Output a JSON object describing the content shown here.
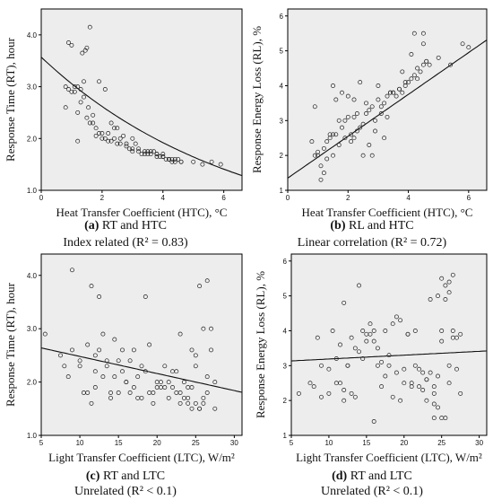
{
  "chart_data": [
    {
      "type": "scatter",
      "panel_label": "(a)",
      "caption_title": "RT and HTC",
      "caption_sub": "Index related (R² = 0.83)",
      "xlabel": "Heat Transfer Coefficient (HTC), °C",
      "ylabel": "Response Time (RT), hour",
      "xlim": [
        0,
        6.6
      ],
      "ylim": [
        1.0,
        4.5
      ],
      "xticks": [
        0,
        2,
        4,
        6
      ],
      "yticks": [
        1.0,
        2.0,
        3.0,
        4.0
      ],
      "grid": false,
      "fit": {
        "kind": "exp",
        "a": 3.57,
        "b": -0.155
      },
      "x": [
        0.8,
        0.9,
        1.0,
        1.1,
        1.2,
        1.3,
        1.4,
        1.5,
        1.6,
        0.8,
        1.0,
        1.2,
        1.4,
        1.6,
        1.8,
        2.0,
        2.2,
        2.4,
        2.6,
        2.8,
        3.0,
        3.2,
        3.4,
        3.6,
        3.8,
        4.0,
        4.2,
        4.4,
        4.6,
        1.8,
        2.0,
        2.2,
        2.4,
        2.6,
        2.8,
        3.0,
        3.2,
        3.4,
        3.6,
        3.8,
        4.0,
        4.2,
        4.4,
        1.3,
        1.5,
        1.7,
        1.9,
        2.1,
        2.3,
        2.5,
        2.7,
        2.9,
        3.1,
        3.3,
        3.5,
        3.7,
        3.9,
        4.1,
        4.3,
        4.5,
        1.35,
        1.45,
        1.55,
        0.9,
        1.1,
        1.9,
        2.1,
        4.0,
        4.3,
        4.6,
        5.0,
        5.3,
        5.6,
        5.9,
        2.5,
        3.0,
        3.5,
        3.8,
        4.2,
        2.3,
        1.2,
        1.7
      ],
      "y": [
        2.6,
        3.85,
        3.8,
        2.9,
        3.0,
        2.95,
        3.1,
        3.75,
        4.15,
        3.0,
        2.9,
        2.5,
        2.8,
        2.3,
        2.2,
        2.0,
        2.1,
        2.2,
        2.0,
        1.9,
        1.8,
        1.75,
        1.7,
        1.75,
        1.7,
        1.65,
        1.6,
        1.6,
        1.55,
        2.05,
        2.1,
        1.95,
        2.0,
        1.9,
        1.85,
        1.75,
        1.8,
        1.75,
        1.7,
        1.65,
        1.7,
        1.6,
        1.55,
        2.7,
        2.4,
        2.3,
        2.1,
        2.0,
        2.3,
        1.9,
        2.05,
        1.8,
        1.9,
        1.7,
        1.7,
        1.75,
        1.65,
        1.6,
        1.55,
        1.6,
        3.65,
        3.7,
        2.6,
        2.95,
        3.0,
        3.1,
        2.95,
        1.65,
        1.6,
        1.55,
        1.55,
        1.5,
        1.55,
        1.5,
        2.2,
        2.0,
        1.75,
        1.7,
        1.6,
        1.95,
        1.95,
        2.45
      ]
    },
    {
      "type": "scatter",
      "panel_label": "(b)",
      "caption_title": "RL and HTC",
      "caption_sub": "Linear correlation (R² = 0.72)",
      "xlabel": "Heat Transfer Coefficient (HTC), °C",
      "ylabel": "Response Energy Loss (RL), %",
      "xlim": [
        0,
        6.6
      ],
      "ylim": [
        1.0,
        6.2
      ],
      "xticks": [
        0,
        2,
        4,
        6
      ],
      "yticks": [
        1,
        2,
        3,
        4,
        5,
        6
      ],
      "grid": false,
      "fit": {
        "kind": "linear",
        "a": 1.35,
        "b": 0.6
      },
      "x": [
        0.8,
        0.9,
        1.0,
        1.1,
        1.2,
        1.3,
        1.4,
        1.5,
        1.6,
        1.7,
        1.8,
        1.9,
        2.0,
        2.1,
        2.2,
        2.3,
        2.4,
        2.5,
        2.6,
        2.7,
        2.8,
        2.9,
        3.0,
        3.1,
        3.2,
        3.3,
        3.4,
        3.5,
        3.6,
        3.7,
        3.8,
        3.9,
        4.0,
        4.1,
        4.2,
        4.3,
        4.4,
        4.5,
        4.6,
        0.9,
        1.1,
        1.3,
        1.5,
        1.7,
        1.9,
        2.1,
        2.3,
        2.5,
        2.7,
        2.9,
        3.1,
        3.3,
        3.5,
        3.7,
        3.9,
        4.1,
        4.3,
        4.5,
        1.0,
        1.2,
        1.4,
        1.6,
        1.8,
        2.0,
        2.2,
        2.4,
        2.6,
        2.8,
        3.0,
        3.4,
        3.8,
        4.2,
        4.5,
        5.0,
        5.4,
        5.8,
        6.0,
        4.6,
        4.7,
        1.5,
        2.2,
        3.2
      ],
      "y": [
        2.4,
        2.0,
        2.1,
        1.7,
        1.5,
        2.4,
        2.5,
        2.6,
        2.6,
        3.0,
        2.8,
        3.0,
        3.1,
        2.6,
        2.5,
        2.7,
        2.8,
        2.9,
        3.2,
        3.3,
        3.4,
        3.0,
        3.6,
        3.4,
        3.5,
        3.7,
        3.8,
        3.8,
        3.7,
        3.9,
        3.8,
        4.0,
        4.1,
        4.2,
        4.3,
        4.2,
        4.4,
        4.6,
        4.7,
        3.4,
        1.3,
        1.9,
        2.0,
        2.3,
        2.5,
        2.4,
        3.2,
        2.0,
        2.3,
        2.7,
        3.2,
        3.1,
        3.8,
        3.9,
        4.1,
        4.9,
        4.5,
        5.5,
        2.0,
        2.2,
        2.6,
        3.6,
        3.8,
        3.7,
        3.1,
        4.1,
        3.5,
        2.0,
        4.0,
        3.8,
        4.4,
        5.5,
        5.2,
        4.8,
        4.6,
        5.2,
        5.1,
        4.7,
        4.6,
        4.0,
        3.6,
        2.5
      ]
    },
    {
      "type": "scatter",
      "panel_label": "(c)",
      "caption_title": "RT and LTC",
      "caption_sub": "Unrelated (R² < 0.1)",
      "xlabel": "Light Transfer Coefficient (LTC), W/m²",
      "ylabel": "Response Time (RT), hour",
      "xlim": [
        5,
        31
      ],
      "ylim": [
        1.0,
        4.4
      ],
      "xticks": [
        5,
        10,
        15,
        20,
        25,
        30
      ],
      "yticks": [
        1.0,
        2.0,
        3.0,
        4.0
      ],
      "grid": false,
      "fit": {
        "kind": "linear",
        "a": 2.8,
        "b": -0.032
      },
      "x": [
        5.5,
        7.5,
        8.0,
        8.5,
        9.0,
        10.0,
        10.5,
        11.0,
        11.5,
        12.0,
        12.5,
        13.0,
        13.5,
        14.0,
        14.5,
        15.0,
        15.5,
        16.0,
        16.5,
        17.0,
        17.5,
        18.0,
        18.5,
        19.0,
        19.5,
        20.0,
        20.5,
        21.0,
        21.5,
        22.0,
        22.5,
        23.0,
        23.5,
        24.0,
        24.5,
        25.0,
        25.5,
        26.0,
        26.5,
        27.0,
        27.5,
        12.0,
        13.0,
        14.0,
        15.0,
        16.0,
        17.0,
        18.0,
        19.0,
        20.0,
        21.0,
        22.0,
        23.0,
        24.0,
        25.0,
        26.0,
        27.0,
        11.0,
        12.5,
        14.5,
        16.5,
        18.5,
        20.5,
        22.5,
        24.5,
        25.5,
        26.5,
        23.0,
        24.0,
        25.0,
        26.0,
        10.0,
        11.5,
        13.5,
        15.5,
        17.5,
        19.5,
        21.5,
        23.5,
        24.5,
        25.5,
        26.5,
        27.5,
        9.0,
        12.0
      ],
      "y": [
        2.9,
        2.5,
        2.3,
        2.1,
        4.1,
        2.3,
        1.8,
        2.7,
        3.8,
        2.2,
        2.6,
        2.9,
        2.3,
        1.7,
        2.1,
        1.8,
        2.2,
        2.0,
        1.8,
        2.6,
        2.1,
        1.7,
        3.6,
        1.8,
        1.8,
        1.9,
        2.0,
        2.3,
        1.7,
        1.9,
        1.8,
        1.6,
        1.7,
        1.6,
        1.5,
        1.6,
        1.5,
        1.7,
        1.8,
        2.6,
        2.0,
        1.9,
        2.1,
        1.8,
        2.4,
        2.0,
        1.9,
        2.3,
        2.7,
        2.0,
        1.9,
        2.2,
        2.9,
        1.9,
        2.5,
        3.0,
        3.0,
        1.8,
        3.6,
        2.8,
        2.4,
        2.2,
        1.9,
        2.2,
        2.6,
        3.8,
        3.9,
        1.8,
        1.7,
        2.3,
        1.6,
        2.4,
        1.6,
        2.4,
        2.6,
        1.7,
        1.6,
        2.0,
        2.0,
        1.9,
        1.5,
        2.1,
        1.5,
        2.6,
        2.5
      ]
    },
    {
      "type": "scatter",
      "panel_label": "(d)",
      "caption_title": "RT and LTC",
      "caption_sub": "Unrelated (R² < 0.1)",
      "xlabel": "Light Transfer Coefficient (LTC), W/m²",
      "ylabel": "Response Energy Loss (RL), %",
      "xlim": [
        5,
        31
      ],
      "ylim": [
        1.0,
        6.2
      ],
      "xticks": [
        5,
        10,
        15,
        20,
        25,
        30
      ],
      "yticks": [
        1,
        2,
        3,
        4,
        5,
        6
      ],
      "grid": false,
      "fit": {
        "kind": "linear",
        "a": 3.08,
        "b": 0.011
      },
      "x": [
        6.0,
        7.5,
        8.0,
        8.5,
        9.0,
        10.0,
        10.5,
        11.0,
        11.5,
        12.0,
        12.5,
        13.0,
        13.5,
        14.0,
        14.5,
        15.0,
        15.5,
        16.0,
        16.5,
        17.0,
        17.5,
        18.0,
        18.5,
        19.0,
        19.5,
        20.0,
        20.5,
        21.0,
        21.5,
        22.0,
        22.5,
        23.0,
        23.5,
        24.0,
        24.5,
        25.0,
        25.5,
        26.0,
        26.5,
        27.0,
        27.5,
        12.0,
        13.0,
        14.0,
        15.0,
        16.0,
        17.0,
        18.0,
        19.0,
        20.0,
        21.0,
        22.0,
        23.0,
        24.0,
        25.0,
        26.0,
        27.0,
        11.0,
        12.5,
        14.5,
        16.5,
        18.5,
        20.5,
        22.5,
        24.5,
        25.5,
        26.5,
        23.0,
        24.0,
        25.0,
        26.0,
        10.0,
        11.5,
        13.5,
        15.5,
        17.5,
        19.5,
        21.5,
        23.5,
        24.5,
        25.5,
        26.5,
        27.5,
        9.0,
        12.0,
        16.0,
        24.0,
        25.0,
        26.0
      ],
      "y": [
        2.2,
        2.5,
        2.4,
        3.8,
        2.1,
        2.9,
        4.0,
        2.5,
        3.6,
        2.3,
        3.0,
        2.2,
        3.5,
        5.3,
        4.0,
        3.9,
        4.2,
        1.4,
        3.0,
        2.4,
        4.0,
        3.0,
        2.1,
        2.8,
        4.3,
        2.5,
        3.9,
        2.4,
        4.0,
        2.9,
        2.8,
        2.0,
        4.9,
        1.9,
        2.7,
        4.0,
        5.3,
        3.0,
        3.8,
        2.9,
        3.9,
        4.8,
        3.8,
        3.4,
        3.7,
        3.7,
        3.1,
        3.3,
        4.4,
        2.9,
        2.5,
        2.4,
        2.6,
        2.4,
        3.7,
        5.1,
        3.8,
        3.2,
        3.0,
        3.2,
        3.5,
        4.2,
        3.9,
        2.3,
        5.0,
        4.9,
        5.6,
        2.6,
        2.2,
        1.5,
        5.4,
        2.2,
        2.5,
        2.1,
        3.9,
        2.7,
        2.0,
        3.0,
        2.8,
        1.8,
        1.5,
        4.0,
        2.2,
        3.0,
        2.0,
        4.0,
        1.5,
        5.5,
        2.5
      ]
    }
  ]
}
